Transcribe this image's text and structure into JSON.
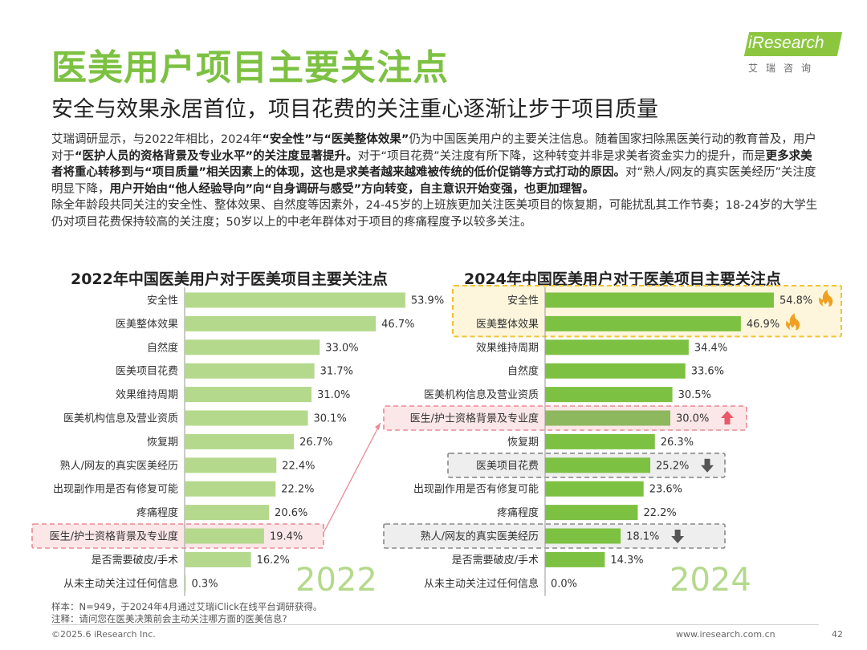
{
  "page": {
    "title": "医美用户项目主要关注点",
    "subtitle": "安全与效果永居首位，项目花费的关注重心逐渐让步于项目质量",
    "logo_text": "iResearch",
    "logo_sub": "艾瑞咨询",
    "body": {
      "s1": "艾瑞调研显示，与2022年相比，2024年",
      "s2": "“安全性”与“医美整体效果”",
      "s3": "仍为中国医美用户的主要关注信息。",
      "s4": "随着国家扫除黑医美行动的教育普及，用户对于",
      "s5": "“医护人员的资格背景及专业水平”的关注度显著提升。",
      "s6": "对于“项目花费”关注度有所下降，这种转变并非是求美者资金实力的提升，而是",
      "s7": "更多求美者将重心转移到与“项目质量”相关因素上的体现，这也是求美者越来越难被传统的低价促销等方式打动的原因。",
      "s8": "对“熟人/网友的真实医美经历”关注度明显下降，",
      "s9": "用户开始由“他人经验导向”向“自身调研与感受”方向转变，自主意识开始变强，也更加理智。",
      "p2": "除全年龄段共同关注的安全性、整体效果、自然度等因素外，24-45岁的上班族更加关注医美项目的恢复期，可能扰乱其工作节奏；18-24岁的大学生仍对项目花费保持较高的关注度；50岁以上的中老年群体对于项目的疼痛程度予以较多关注。"
    },
    "footnote_sample": "样本：N=949，于2024年4月通过艾瑞iClick在线平台调研获得。",
    "footnote_note": "注释：请问您在医美决策前会主动关注哪方面的医美信息?",
    "footer_left": "©2025.6 iResearch Inc.",
    "footer_url": "www.iresearch.com.cn",
    "page_number": "42"
  },
  "colors": {
    "title_green": "#7dc142",
    "bar_2022": "#b4d98c",
    "bar_2024": "#7dc142",
    "bar_2024_highlight": "#8db85e",
    "highlight_yellow_border": "#f2c230",
    "highlight_yellow_fill": "#fdf6dc",
    "highlight_pink_border": "#e88a94",
    "highlight_pink_fill": "#fbe7e8",
    "highlight_gray_border": "#888888",
    "highlight_gray_fill": "#eeeeee",
    "fire": "#f0a020",
    "arrow_up": "#e85a6a",
    "arrow_down": "#555555"
  },
  "chart_data": [
    {
      "type": "bar",
      "orientation": "horizontal",
      "title": "2022年中国医美用户对于医美项目主要关注点",
      "year_label": "2022",
      "unit": "%",
      "xlim": [
        0,
        60
      ],
      "categories": [
        "安全性",
        "医美整体效果",
        "自然度",
        "医美项目花费",
        "效果维持周期",
        "医美机构信息及营业资质",
        "恢复期",
        "熟人/网友的真实医美经历",
        "出现副作用是否有修复可能",
        "疼痛程度",
        "医生/护士资格背景及专业度",
        "是否需要破皮/手术",
        "从未主动关注过任何信息"
      ],
      "values": [
        53.9,
        46.7,
        33.0,
        31.7,
        31.0,
        30.1,
        26.7,
        22.4,
        22.2,
        20.6,
        19.4,
        16.2,
        0.3
      ],
      "value_labels": [
        "53.9%",
        "46.7%",
        "33.0%",
        "31.7%",
        "31.0%",
        "30.1%",
        "26.7%",
        "22.4%",
        "22.2%",
        "20.6%",
        "19.4%",
        "16.2%",
        "0.3%"
      ],
      "highlights": [
        {
          "category": "医生/护士资格背景及专业度",
          "style": "pink"
        }
      ]
    },
    {
      "type": "bar",
      "orientation": "horizontal",
      "title": "2024年中国医美用户对于医美项目主要关注点",
      "year_label": "2024",
      "unit": "%",
      "xlim": [
        0,
        60
      ],
      "categories": [
        "安全性",
        "医美整体效果",
        "效果维持周期",
        "自然度",
        "医美机构信息及营业资质",
        "医生/护士资格背景及专业度",
        "恢复期",
        "医美项目花费",
        "出现副作用是否有修复可能",
        "疼痛程度",
        "熟人/网友的真实医美经历",
        "是否需要破皮/手术",
        "从未主动关注过任何信息"
      ],
      "values": [
        54.8,
        46.9,
        34.4,
        33.6,
        30.5,
        30.0,
        26.3,
        25.2,
        23.6,
        22.2,
        18.1,
        14.3,
        0.0
      ],
      "value_labels": [
        "54.8%",
        "46.9%",
        "34.4%",
        "33.6%",
        "30.5%",
        "30.0%",
        "26.3%",
        "25.2%",
        "23.6%",
        "22.2%",
        "18.1%",
        "14.3%",
        "0.0%"
      ],
      "highlights": [
        {
          "category": "安全性",
          "style": "yellow",
          "marker": "fire-icon"
        },
        {
          "category": "医美整体效果",
          "style": "yellow",
          "marker": "fire-icon"
        },
        {
          "category": "医生/护士资格背景及专业度",
          "style": "pink",
          "marker": "arrow-up-icon"
        },
        {
          "category": "医美项目花费",
          "style": "gray",
          "marker": "arrow-down-icon"
        },
        {
          "category": "熟人/网友的真实医美经历",
          "style": "gray",
          "marker": "arrow-down-icon"
        }
      ]
    }
  ]
}
